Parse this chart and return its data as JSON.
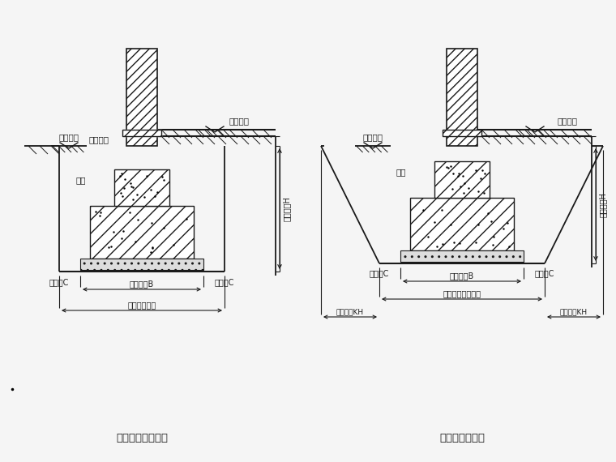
{
  "bg_color": "#f5f5f5",
  "line_color": "#1a1a1a",
  "title1": "不放坡的基槽断面",
  "title2": "放坡的基槽断面",
  "label_outdoor1": "室外地坪",
  "label_indoor1": "室内地坪",
  "label_outdoor2": "室外地坪",
  "label_indoor2": "室内地坪",
  "label_jiji1": "基础",
  "label_jiji2": "基础",
  "label_work_left1": "工作面C",
  "label_work_right1": "工作面C",
  "label_work_left2": "工作面C",
  "label_work_right2": "工作面C",
  "label_jijikuan1": "基础宽度B",
  "label_jijikuan2": "基础宽度B",
  "label_jicaokuan1": "基槽开挖宽度",
  "label_jicaokuan2": "基槽基底开挖宽度",
  "label_pocuan_left": "放坡宽度KH",
  "label_pocuan_right": "放坡宽度KH",
  "label_depth": "开挖深度H",
  "font_size_label": 7.5,
  "font_size_title": 9.5,
  "font_size_dim": 7.0
}
